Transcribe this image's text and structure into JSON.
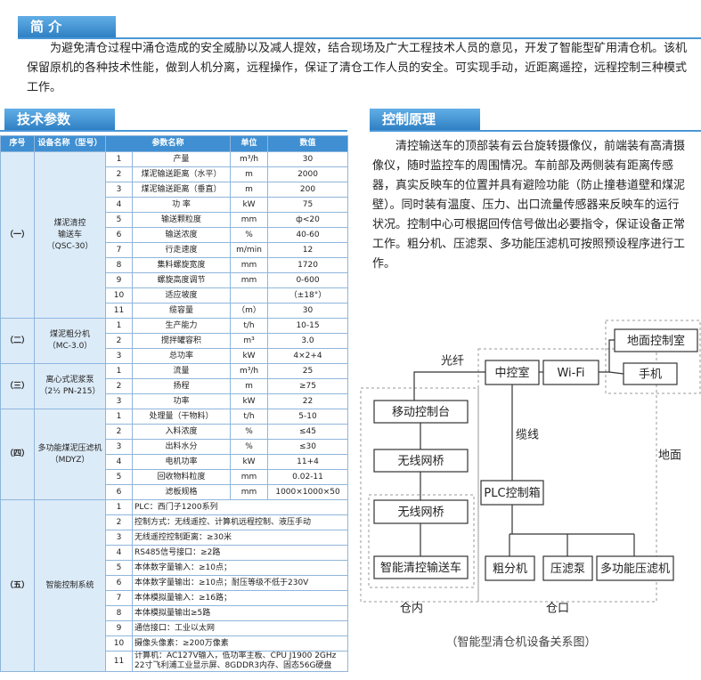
{
  "intro": {
    "heading": "简 介",
    "text": "为避免清仓过程中涌仓造成的安全威胁以及减人提效，结合现场及广大工程技术人员的意见，开发了智能型矿用清仓机。该机保留原机的各种技术性能，做到人机分离，远程操作，保证了清仓工作人员的安全。可实现手动，近距离遥控，远程控制三种模式工作。"
  },
  "params": {
    "heading": "技术参数",
    "table": {
      "header": [
        "序号",
        "设备名称（型号）",
        "参数名称",
        "单位",
        "数值"
      ],
      "groups": [
        {
          "id": "（一）",
          "name": [
            "煤泥清控",
            "输送车",
            "（QSC-30）"
          ],
          "rows": [
            [
              "1",
              "产量",
              "m³/h",
              "30"
            ],
            [
              "2",
              "煤泥输送距离（水平）",
              "m",
              "2000"
            ],
            [
              "3",
              "煤泥输送距离（垂直）",
              "m",
              "200"
            ],
            [
              "4",
              "功 率",
              "kW",
              "75"
            ],
            [
              "5",
              "输送颗粒度",
              "mm",
              "ф<20"
            ],
            [
              "6",
              "输送浓度",
              "%",
              "40-60"
            ],
            [
              "7",
              "行走速度",
              "m/min",
              "12"
            ],
            [
              "8",
              "集料螺旋宽度",
              "mm",
              "1720"
            ],
            [
              "9",
              "螺旋高度调节",
              "mm",
              "0-600"
            ],
            [
              "10",
              "适应坡度",
              "",
              "（±18°）"
            ],
            [
              "11",
              "缆容量",
              "（m）",
              "30"
            ]
          ]
        },
        {
          "id": "（二）",
          "name": [
            "煤泥粗分机",
            "（MC-3.0）"
          ],
          "rows": [
            [
              "1",
              "生产能力",
              "t/h",
              "10-15"
            ],
            [
              "2",
              "搅拌罐容积",
              "m³",
              "3.0"
            ],
            [
              "3",
              "总功率",
              "kW",
              "4×2+4"
            ]
          ]
        },
        {
          "id": "（三）",
          "name": [
            "离心式泥浆泵",
            "（2½ PN-215）"
          ],
          "rows": [
            [
              "1",
              "流量",
              "m³/h",
              "25"
            ],
            [
              "2",
              "扬程",
              "m",
              "≥75"
            ],
            [
              "3",
              "功率",
              "kW",
              "22"
            ]
          ]
        },
        {
          "id": "（四）",
          "name": [
            "多功能煤泥压滤机",
            "（MDYZ）"
          ],
          "rows": [
            [
              "1",
              "处理量（干物料）",
              "t/h",
              "5-10"
            ],
            [
              "2",
              "入料浓度",
              "%",
              "≤45"
            ],
            [
              "3",
              "出料水分",
              "%",
              "≤30"
            ],
            [
              "4",
              "电机功率",
              "kW",
              "11+4"
            ],
            [
              "5",
              "回收物料粒度",
              "mm",
              "0.02-11"
            ],
            [
              "6",
              "滤板规格",
              "mm",
              "1000×1000×50"
            ]
          ]
        },
        {
          "id": "（五）",
          "name": [
            "智能控制系统"
          ],
          "rows": [
            [
              "1",
              "PLC：西门子1200系列"
            ],
            [
              "2",
              "控制方式：无线遥控、计算机远程控制、液压手动"
            ],
            [
              "3",
              "无线遥控控制距离：≥30米"
            ],
            [
              "4",
              "RS485信号接口：≥2路"
            ],
            [
              "5",
              "本体数字量输入：≥10点；"
            ],
            [
              "6",
              "本体数字量输出：≥10点；耐压等级不低于230V"
            ],
            [
              "7",
              "本体模拟量输入：≥16路；"
            ],
            [
              "8",
              "本体模拟量输出≥5路"
            ],
            [
              "9",
              "通信接口：工业以太网"
            ],
            [
              "10",
              "摄像头像素：≥200万像素"
            ],
            [
              "11",
              "计算机：AC127V输入，低功率主板、CPU J1900 2GHz",
              "22寸飞利浦工业显示屏、8GDDR3内存、固态56G硬盘"
            ]
          ]
        }
      ]
    }
  },
  "principle": {
    "heading": "控制原理",
    "text": "清控输送车的顶部装有云台旋转摄像仪，前端装有高清摄像仪，随时监控车的周围情况。车前部及两侧装有距离传感器，真实反映车的位置并具有避险功能（防止撞巷道壁和煤泥壁）。同时装有温度、压力、出口流量传感器来反映车的运行状况。控制中心可根据回传信号做出必要指令，保证设备正常工作。粗分机、压滤泵、多功能压滤机可按照预设程序进行工作。"
  },
  "diagram": {
    "nodes": [
      "中控室",
      "Wi-Fi",
      "地面控制室",
      "手机",
      "移动控制台",
      "无线网桥",
      "无线网桥",
      "智能清控输送车",
      "PLC控制箱",
      "粗分机",
      "压滤泵",
      "多功能压滤机"
    ],
    "labels": [
      "光纤",
      "缆线",
      "地面",
      "仓内",
      "仓口"
    ],
    "caption": "（智能型清仓机设备关系图）"
  }
}
